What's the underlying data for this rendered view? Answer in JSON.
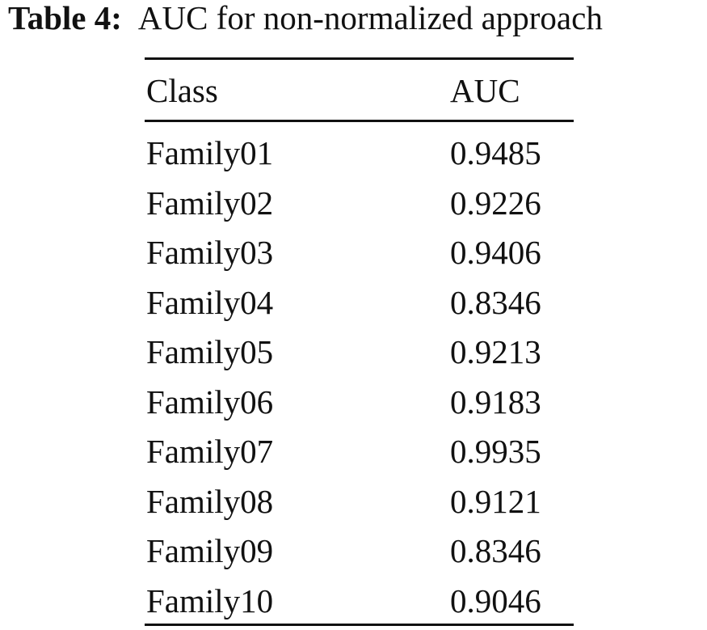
{
  "caption": {
    "label": "Table 4:",
    "text": "AUC for non-normalized approach"
  },
  "table": {
    "headers": [
      "Class",
      "AUC"
    ],
    "rows": [
      [
        "Family01",
        "0.9485"
      ],
      [
        "Family02",
        "0.9226"
      ],
      [
        "Family03",
        "0.9406"
      ],
      [
        "Family04",
        "0.8346"
      ],
      [
        "Family05",
        "0.9213"
      ],
      [
        "Family06",
        "0.9183"
      ],
      [
        "Family07",
        "0.9935"
      ],
      [
        "Family08",
        "0.9121"
      ],
      [
        "Family09",
        "0.8346"
      ],
      [
        "Family10",
        "0.9046"
      ]
    ]
  }
}
